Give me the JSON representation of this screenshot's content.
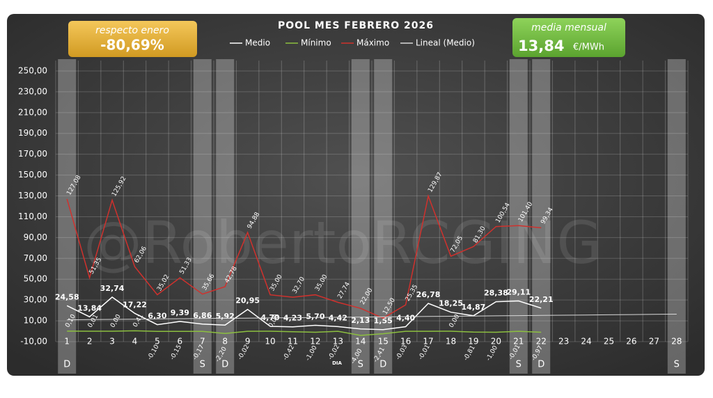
{
  "chart_data": {
    "type": "line",
    "title": "POOL  MES FEBRERO 2026",
    "x_label": "DIA",
    "watermark": "@RobertoRCGING",
    "summary": {
      "change_label": "respecto enero",
      "change": "-80,69%",
      "avg_label": "media mensual",
      "avg": "13,84",
      "avg_unit": "€/MWh"
    },
    "categories": [
      "1",
      "2",
      "3",
      "4",
      "5",
      "6",
      "7",
      "8",
      "9",
      "10",
      "11",
      "12",
      "13",
      "14",
      "15",
      "16",
      "17",
      "18",
      "19",
      "20",
      "21",
      "22",
      "23",
      "24",
      "25",
      "26",
      "27",
      "28"
    ],
    "day_markers": [
      "D",
      null,
      null,
      null,
      null,
      null,
      "S",
      "D",
      null,
      null,
      null,
      null,
      null,
      "S",
      "D",
      null,
      null,
      null,
      null,
      null,
      "S",
      "D",
      null,
      null,
      null,
      null,
      null,
      "S"
    ],
    "ylim": [
      -10,
      260
    ],
    "yticks": [
      {
        "value": -10,
        "label": "-10,00"
      },
      {
        "value": 10,
        "label": "10,00"
      },
      {
        "value": 30,
        "label": "30,00"
      },
      {
        "value": 50,
        "label": "50,00"
      },
      {
        "value": 70,
        "label": "70,00"
      },
      {
        "value": 90,
        "label": "90,00"
      },
      {
        "value": 110,
        "label": "110,00"
      },
      {
        "value": 130,
        "label": "130,00"
      },
      {
        "value": 150,
        "label": "150,00"
      },
      {
        "value": 170,
        "label": "170,00"
      },
      {
        "value": 190,
        "label": "190,00"
      },
      {
        "value": 210,
        "label": "210,00"
      },
      {
        "value": 230,
        "label": "230,00"
      },
      {
        "value": 250,
        "label": "250,00"
      }
    ],
    "grid": true,
    "series": [
      {
        "name": "Medio",
        "color": "#ffffff",
        "values": [
          24.58,
          13.84,
          32.74,
          17.22,
          6.3,
          9.39,
          6.86,
          5.92,
          20.95,
          4.7,
          4.23,
          5.7,
          4.42,
          2.13,
          1.55,
          4.4,
          26.78,
          18.25,
          14.87,
          28.38,
          29.11,
          22.21,
          null,
          null,
          null,
          null,
          null,
          null
        ],
        "value_labels": [
          "24,58",
          "13,84",
          "32,74",
          "17,22",
          "6,30",
          "9,39",
          "6,86",
          "5,92",
          "20,95",
          "4,70",
          "4,23",
          "5,70",
          "4,42",
          "2,13",
          "1,55",
          "4,40",
          "26,78",
          "18,25",
          "14,87",
          "28,38",
          "29,11",
          "22,21",
          null,
          null,
          null,
          null,
          null,
          null
        ]
      },
      {
        "name": "Mínimo",
        "color": "#8cbf3f",
        "values": [
          0.1,
          0.01,
          0.0,
          0.41,
          -0.1,
          -0.15,
          -0.17,
          -2.2,
          -0.02,
          0.0,
          -0.42,
          -1.0,
          -0.02,
          -4.0,
          -2.41,
          -0.03,
          -0.01,
          0.0,
          -0.81,
          -1.0,
          -0.01,
          -0.97,
          null,
          null,
          null,
          null,
          null,
          null
        ],
        "value_labels": [
          "0,10",
          "0,01",
          "0,00",
          "0,41",
          "-0,10",
          "-0,15",
          "-0,17",
          "-2,20",
          "-0,02",
          "0,00",
          "-0,42",
          "-1,00",
          "-0,02",
          "-4,00",
          "-2,41",
          "-0,03",
          "-0,01",
          "0,00",
          "-0,81",
          "-1,00",
          "-0,01",
          "-0,97",
          null,
          null,
          null,
          null,
          null,
          null
        ]
      },
      {
        "name": "Máximo",
        "color": "#d0312d",
        "values": [
          127.08,
          51.35,
          125.92,
          62.06,
          35.02,
          51.33,
          35.66,
          42.78,
          94.88,
          35.0,
          32.7,
          35.0,
          27.74,
          22.0,
          12.5,
          25.35,
          129.87,
          72.05,
          81.3,
          100.54,
          101.4,
          99.34,
          null,
          null,
          null,
          null,
          null,
          null
        ],
        "value_labels": [
          "127,08",
          "51,35",
          "125,92",
          "62,06",
          "35,02",
          "51,33",
          "35,66",
          "42,78",
          "94,88",
          "35,00",
          "32,70",
          "35,00",
          "27,74",
          "22,00",
          "12,50",
          "25,35",
          "129,87",
          "72,05",
          "81,30",
          "100,54",
          "101,40",
          "99,34",
          null,
          null,
          null,
          null,
          null,
          null
        ]
      },
      {
        "name": "Lineal (Medio)",
        "color": "#d9d9d9",
        "values": [
          11.0,
          11.2,
          11.4,
          11.6,
          11.8,
          12.0,
          12.2,
          12.4,
          12.6,
          12.8,
          13.0,
          13.2,
          13.4,
          13.6,
          13.8,
          14.0,
          14.2,
          14.4,
          14.6,
          14.8,
          15.0,
          15.2,
          15.4,
          15.6,
          15.8,
          16.0,
          16.2,
          16.4
        ]
      }
    ]
  }
}
